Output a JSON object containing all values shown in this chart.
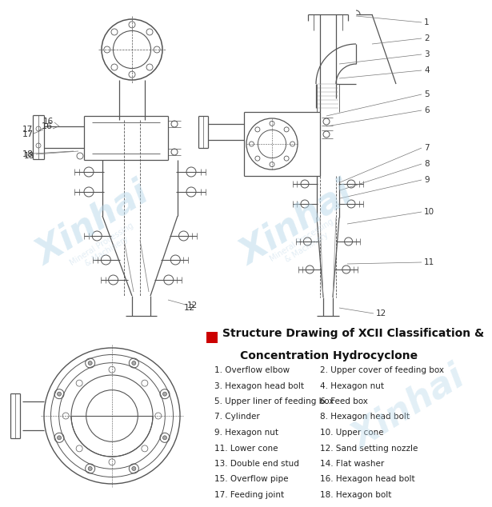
{
  "title_line1": "Structure Drawing of XCII Classification &",
  "title_line2": "Concentration Hydrocyclone",
  "title_color": "#1a1a1a",
  "red_square_color": "#cc0000",
  "bg_color": "#ffffff",
  "line_color": "#555555",
  "legend_items_col1": [
    "1. Overflow elbow",
    "3. Hexagon head bolt",
    "5. Upper liner of feeding box",
    "7. Cylinder",
    "9. Hexagon nut",
    "11. Lower cone",
    "13. Double end stud",
    "15. Overflow pipe",
    "17. Feeding joint"
  ],
  "legend_items_col2": [
    "2. Upper cover of feeding box",
    "4. Hexagon nut",
    "6. Feed box",
    "8. Hexagon head bolt",
    "10. Upper cone",
    "12. Sand setting nozzle",
    "14. Flat washer",
    "16. Hexagon head bolt",
    "18. Hexagon bolt"
  ]
}
